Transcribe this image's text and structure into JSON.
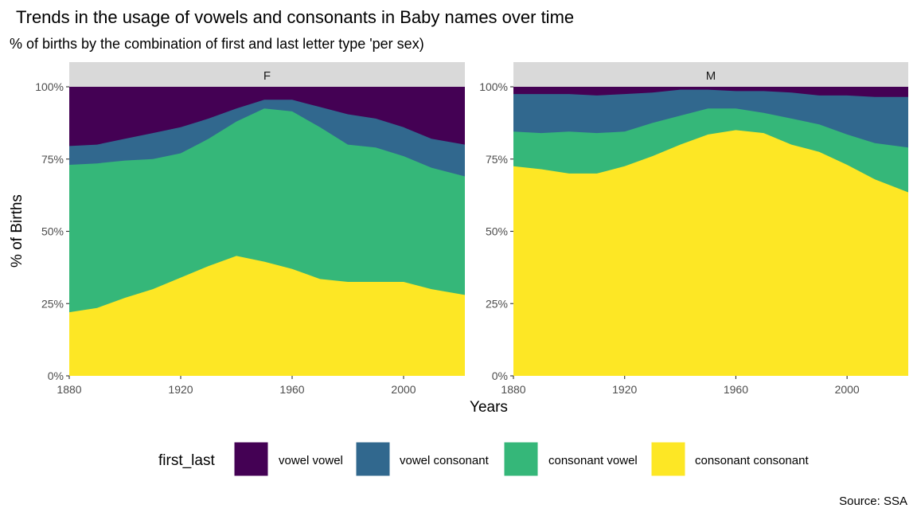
{
  "chart_data": {
    "type": "area",
    "stacked": true,
    "normalized": true,
    "title": "Trends in the usage of vowels and consonants in Baby names over time",
    "subtitle": "% of births by the combination of first and last letter type 'per sex)",
    "xlabel": "Years",
    "ylabel": "% of Births",
    "caption": "Source: SSA",
    "xlim": [
      1880,
      2022
    ],
    "ylim": [
      0,
      1
    ],
    "x_ticks": [
      1880,
      1920,
      1960,
      2000
    ],
    "y_ticks": [
      {
        "value": 0,
        "label": "0%"
      },
      {
        "value": 0.25,
        "label": "25%"
      },
      {
        "value": 0.5,
        "label": "50%"
      },
      {
        "value": 0.75,
        "label": "75%"
      },
      {
        "value": 1,
        "label": "100%"
      }
    ],
    "legend": {
      "title": "first_last",
      "position": "bottom",
      "entries": [
        {
          "label": "vowel vowel",
          "color": "#440154"
        },
        {
          "label": "vowel consonant",
          "color": "#31688E"
        },
        {
          "label": "consonant vowel",
          "color": "#35B779"
        },
        {
          "label": "consonant consonant",
          "color": "#FDE725"
        }
      ]
    },
    "x": [
      1880,
      1890,
      1900,
      1910,
      1920,
      1930,
      1940,
      1950,
      1960,
      1970,
      1980,
      1990,
      2000,
      2010,
      2022
    ],
    "panels": [
      {
        "name": "F",
        "cumulative_series": [
          {
            "label": "consonant consonant",
            "values": [
              0.22,
              0.235,
              0.27,
              0.3,
              0.34,
              0.38,
              0.415,
              0.395,
              0.37,
              0.335,
              0.325,
              0.325,
              0.325,
              0.3,
              0.28
            ]
          },
          {
            "label": "consonant vowel",
            "values": [
              0.73,
              0.735,
              0.745,
              0.75,
              0.77,
              0.82,
              0.88,
              0.925,
              0.915,
              0.86,
              0.8,
              0.79,
              0.76,
              0.72,
              0.69
            ]
          },
          {
            "label": "vowel consonant",
            "values": [
              0.795,
              0.8,
              0.82,
              0.84,
              0.86,
              0.89,
              0.925,
              0.955,
              0.955,
              0.93,
              0.905,
              0.89,
              0.86,
              0.82,
              0.8
            ]
          },
          {
            "label": "vowel vowel",
            "values": [
              1,
              1,
              1,
              1,
              1,
              1,
              1,
              1,
              1,
              1,
              1,
              1,
              1,
              1,
              1
            ]
          }
        ]
      },
      {
        "name": "M",
        "cumulative_series": [
          {
            "label": "consonant consonant",
            "values": [
              0.725,
              0.715,
              0.7,
              0.7,
              0.725,
              0.76,
              0.8,
              0.835,
              0.85,
              0.84,
              0.8,
              0.775,
              0.73,
              0.68,
              0.635
            ]
          },
          {
            "label": "consonant vowel",
            "values": [
              0.845,
              0.84,
              0.845,
              0.84,
              0.845,
              0.875,
              0.9,
              0.925,
              0.925,
              0.91,
              0.89,
              0.87,
              0.835,
              0.805,
              0.79
            ]
          },
          {
            "label": "vowel consonant",
            "values": [
              0.975,
              0.975,
              0.975,
              0.97,
              0.975,
              0.98,
              0.99,
              0.99,
              0.985,
              0.985,
              0.98,
              0.97,
              0.97,
              0.965,
              0.965
            ]
          },
          {
            "label": "vowel vowel",
            "values": [
              1,
              1,
              1,
              1,
              1,
              1,
              1,
              1,
              1,
              1,
              1,
              1,
              1,
              1,
              1
            ]
          }
        ]
      }
    ]
  }
}
